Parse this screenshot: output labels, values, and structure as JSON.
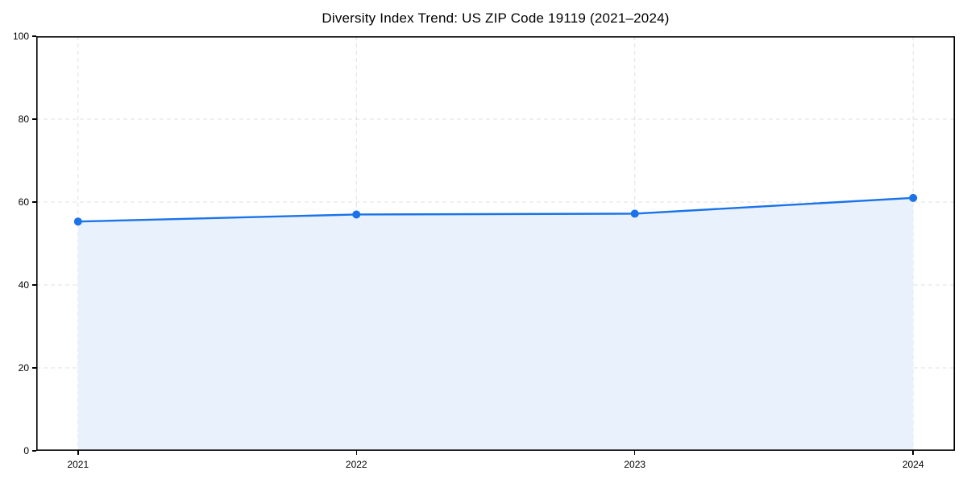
{
  "chart_data": {
    "type": "area",
    "title": "Diversity Index Trend: US ZIP Code 19119 (2021–2024)",
    "categories": [
      "2021",
      "2022",
      "2023",
      "2024"
    ],
    "series": [
      {
        "name": "Diversity Index",
        "values": [
          55.3,
          57.0,
          57.2,
          61.0
        ]
      }
    ],
    "xlabel": "",
    "ylabel": "",
    "ylim": [
      0,
      100
    ],
    "yticks": [
      0,
      20,
      40,
      60,
      80,
      100
    ],
    "grid": "dashed horizontal and vertical",
    "legend": "none",
    "colors": {
      "line": "#1a73e8",
      "marker": "#1a73e8",
      "area_fill": "#e9f1fd",
      "grid": "#e0e0e0",
      "spine": "#000000",
      "text": "#000000",
      "background": "#ffffff"
    }
  }
}
